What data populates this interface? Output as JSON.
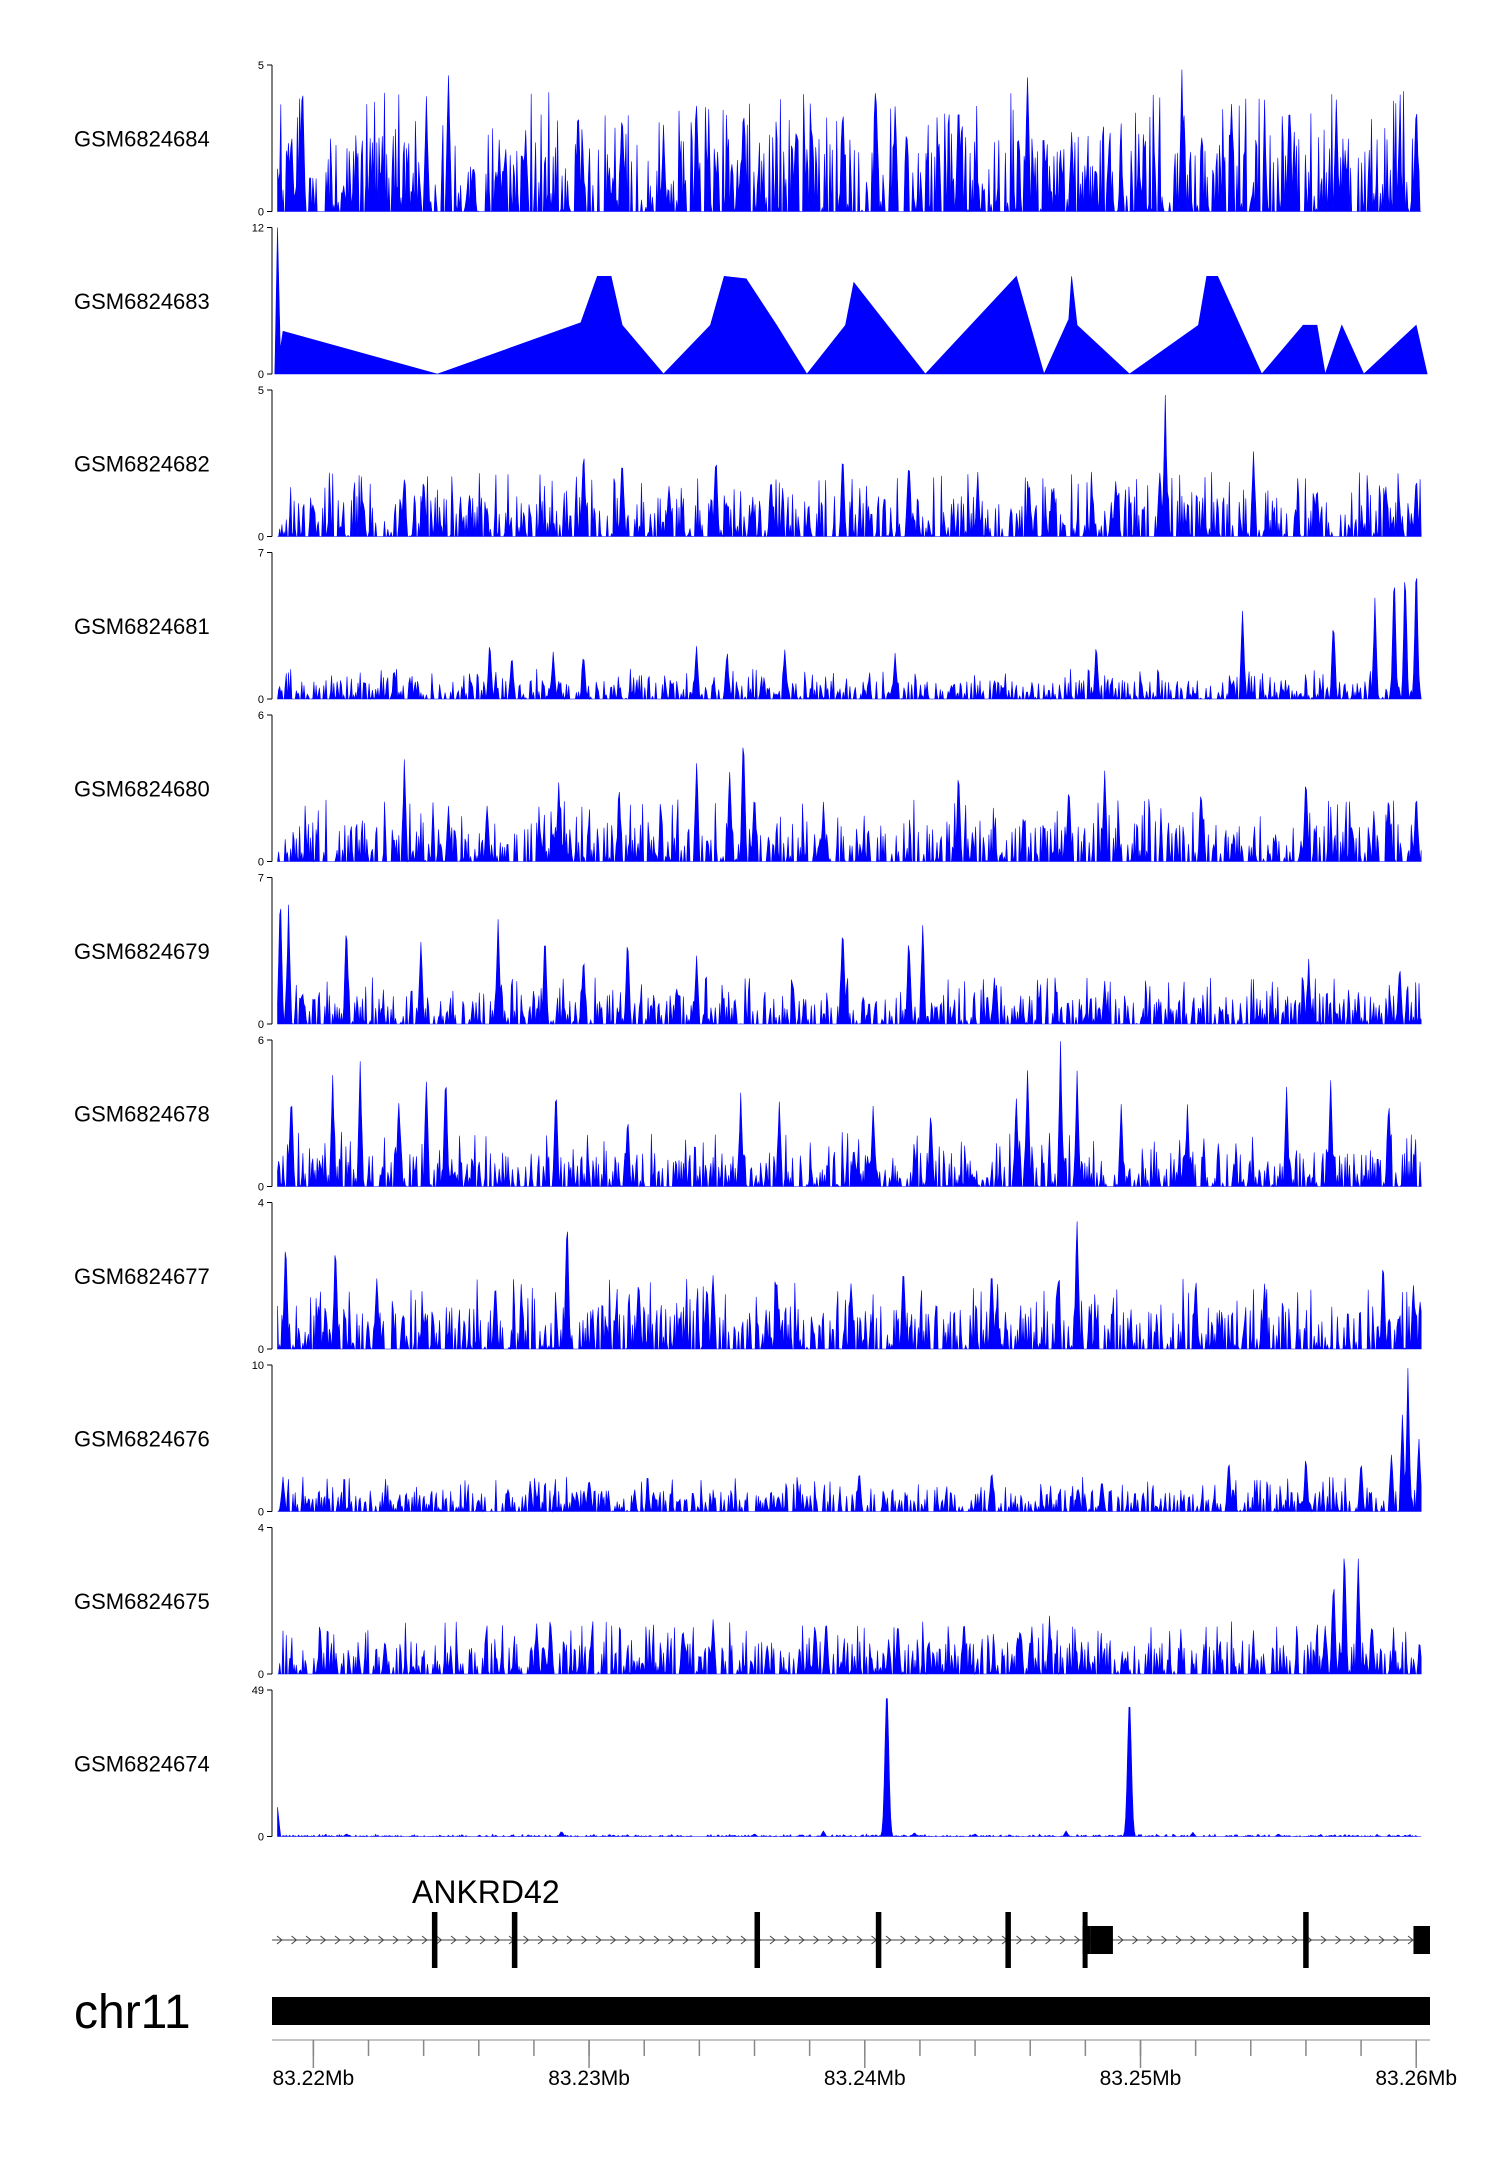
{
  "chart_data": {
    "type": "area",
    "title": "",
    "series_color": "#0000ff",
    "chromosome": "chr11",
    "genome_axis": {
      "min": 83.2185,
      "max": 83.2605,
      "unit": "Mb",
      "ticks": [
        {
          "value": 83.22,
          "label": "83.22Mb"
        },
        {
          "value": 83.23,
          "label": "83.23Mb"
        },
        {
          "value": 83.24,
          "label": "83.24Mb"
        },
        {
          "value": 83.25,
          "label": "83.25Mb"
        },
        {
          "value": 83.26,
          "label": "83.26Mb"
        }
      ],
      "minor_step": 0.002
    },
    "gene": {
      "name": "ANKRD42",
      "start": 83.2185,
      "end": 83.2605,
      "strand": "+",
      "exons": [
        {
          "start": 83.2243,
          "end": 83.2245
        },
        {
          "start": 83.2272,
          "end": 83.2274
        },
        {
          "start": 83.236,
          "end": 83.2362
        },
        {
          "start": 83.2404,
          "end": 83.2406
        },
        {
          "start": 83.2451,
          "end": 83.2453
        },
        {
          "start": 83.2479,
          "end": 83.2482
        },
        {
          "start": 83.2482,
          "end": 83.249
        },
        {
          "start": 83.2559,
          "end": 83.2561
        },
        {
          "start": 83.2599,
          "end": 83.2605
        }
      ]
    },
    "tracks": [
      {
        "name": "GSM6824684",
        "ymax": 5,
        "ytick_max": "5",
        "ytick_min": "0",
        "peaks": [
          [
            83.2192,
            3
          ],
          [
            83.2196,
            5
          ],
          [
            83.2211,
            1
          ],
          [
            83.2225,
            2
          ],
          [
            83.2241,
            4
          ],
          [
            83.2249,
            5
          ],
          [
            83.2258,
            2
          ],
          [
            83.2277,
            3
          ],
          [
            83.2296,
            4
          ],
          [
            83.2312,
            4
          ],
          [
            83.2327,
            3
          ],
          [
            83.2339,
            4
          ],
          [
            83.2356,
            4
          ],
          [
            83.2375,
            3
          ],
          [
            83.2392,
            4
          ],
          [
            83.2404,
            5
          ],
          [
            83.2411,
            4
          ],
          [
            83.2434,
            4
          ],
          [
            83.2459,
            5
          ],
          [
            83.2475,
            3
          ],
          [
            83.2493,
            2
          ],
          [
            83.2515,
            5
          ],
          [
            83.2533,
            4
          ],
          [
            83.2554,
            4
          ],
          [
            83.2571,
            4
          ],
          [
            83.2594,
            3
          ],
          [
            83.26,
            4
          ]
        ],
        "noise": 2.6
      },
      {
        "name": "GSM6824683",
        "ymax": 12,
        "ytick_max": "12",
        "ytick_min": "0",
        "points": [
          [
            83.2186,
            0
          ],
          [
            83.2187,
            12
          ],
          [
            83.2188,
            2
          ],
          [
            83.2189,
            3.5
          ],
          [
            83.2245,
            0
          ],
          [
            83.2297,
            4.2
          ],
          [
            83.2303,
            8
          ],
          [
            83.2308,
            8
          ],
          [
            83.2312,
            4
          ],
          [
            83.2327,
            0
          ],
          [
            83.2344,
            4
          ],
          [
            83.2349,
            8
          ],
          [
            83.2357,
            7.8
          ],
          [
            83.2368,
            4
          ],
          [
            83.2379,
            0
          ],
          [
            83.2393,
            4
          ],
          [
            83.2396,
            7.5
          ],
          [
            83.2422,
            0
          ],
          [
            83.2455,
            8
          ],
          [
            83.2465,
            0
          ],
          [
            83.2474,
            4.5
          ],
          [
            83.2475,
            8
          ],
          [
            83.2477,
            4
          ],
          [
            83.2496,
            0
          ],
          [
            83.2521,
            4
          ],
          [
            83.2524,
            8
          ],
          [
            83.2528,
            8
          ],
          [
            83.2536,
            4
          ],
          [
            83.2544,
            0
          ],
          [
            83.2559,
            4
          ],
          [
            83.2564,
            4
          ],
          [
            83.2567,
            0
          ],
          [
            83.2573,
            4
          ],
          [
            83.2581,
            0
          ],
          [
            83.26,
            4
          ],
          [
            83.2604,
            0
          ]
        ]
      },
      {
        "name": "GSM6824682",
        "ymax": 5,
        "ytick_max": "5",
        "ytick_min": "0",
        "peaks": [
          [
            83.2218,
            1.5
          ],
          [
            83.2233,
            2.2
          ],
          [
            83.224,
            2.3
          ],
          [
            83.2298,
            3.3
          ],
          [
            83.2312,
            3.2
          ],
          [
            83.2329,
            2
          ],
          [
            83.2346,
            3
          ],
          [
            83.2366,
            2.2
          ],
          [
            83.2392,
            3.2
          ],
          [
            83.2416,
            3
          ],
          [
            83.2441,
            2.2
          ],
          [
            83.2468,
            2
          ],
          [
            83.2491,
            2.2
          ],
          [
            83.2507,
            2.5
          ],
          [
            83.2509,
            4.9
          ],
          [
            83.2541,
            3.2
          ],
          [
            83.2564,
            2
          ],
          [
            83.2589,
            2
          ],
          [
            83.26,
            2.2
          ]
        ],
        "noise": 1.4
      },
      {
        "name": "GSM6824681",
        "ymax": 7,
        "ytick_max": "7",
        "ytick_min": "0",
        "peaks": [
          [
            83.2264,
            3
          ],
          [
            83.2272,
            2.3
          ],
          [
            83.2287,
            2.5
          ],
          [
            83.2298,
            2.4
          ],
          [
            83.2339,
            2.8
          ],
          [
            83.235,
            2.6
          ],
          [
            83.2371,
            2.6
          ],
          [
            83.2411,
            2.4
          ],
          [
            83.2484,
            2.9
          ],
          [
            83.2537,
            4.5
          ],
          [
            83.257,
            4.1
          ],
          [
            83.2585,
            5
          ],
          [
            83.2592,
            6.5
          ],
          [
            83.2596,
            6.8
          ],
          [
            83.26,
            7
          ],
          [
            83.2604,
            6.2
          ]
        ],
        "noise": 0.9
      },
      {
        "name": "GSM6824680",
        "ymax": 6,
        "ytick_max": "6",
        "ytick_min": "0",
        "peaks": [
          [
            83.2233,
            4.2
          ],
          [
            83.2249,
            2.3
          ],
          [
            83.2263,
            2.5
          ],
          [
            83.2289,
            3.5
          ],
          [
            83.2311,
            3
          ],
          [
            83.2339,
            4.5
          ],
          [
            83.2351,
            4
          ],
          [
            83.2356,
            6
          ],
          [
            83.236,
            3
          ],
          [
            83.2385,
            2.5
          ],
          [
            83.2434,
            4
          ],
          [
            83.2474,
            3.5
          ],
          [
            83.2487,
            4
          ],
          [
            83.2522,
            3.5
          ],
          [
            83.256,
            4
          ],
          [
            83.259,
            3
          ],
          [
            83.26,
            3
          ]
        ],
        "noise": 1.6
      },
      {
        "name": "GSM6824679",
        "ymax": 7,
        "ytick_max": "7",
        "ytick_min": "0",
        "peaks": [
          [
            83.2188,
            6.8
          ],
          [
            83.2191,
            5.8
          ],
          [
            83.2212,
            5.5
          ],
          [
            83.2239,
            4.2
          ],
          [
            83.2267,
            5.5
          ],
          [
            83.2284,
            4.8
          ],
          [
            83.2298,
            3.6
          ],
          [
            83.2314,
            4.5
          ],
          [
            83.2339,
            3.6
          ],
          [
            83.2392,
            5.6
          ],
          [
            83.2416,
            4.6
          ],
          [
            83.2421,
            5.2
          ],
          [
            83.2447,
            2.4
          ],
          [
            83.2487,
            2.2
          ],
          [
            83.2561,
            3.2
          ],
          [
            83.2594,
            3.3
          ]
        ],
        "noise": 1.4
      },
      {
        "name": "GSM6824678",
        "ymax": 6,
        "ytick_max": "6",
        "ytick_min": "0",
        "peaks": [
          [
            83.2192,
            4.5
          ],
          [
            83.2207,
            4.6
          ],
          [
            83.2217,
            5.5
          ],
          [
            83.2231,
            4
          ],
          [
            83.2241,
            5
          ],
          [
            83.2248,
            5
          ],
          [
            83.2288,
            4.5
          ],
          [
            83.2314,
            3.2
          ],
          [
            83.2355,
            4
          ],
          [
            83.2369,
            3.8
          ],
          [
            83.2403,
            3.5
          ],
          [
            83.2424,
            3.5
          ],
          [
            83.2455,
            4
          ],
          [
            83.2459,
            5.2
          ],
          [
            83.2471,
            6
          ],
          [
            83.2477,
            4.8
          ],
          [
            83.2493,
            3.4
          ],
          [
            83.2517,
            3.5
          ],
          [
            83.2553,
            4.2
          ],
          [
            83.2569,
            4.6
          ],
          [
            83.259,
            4
          ],
          [
            83.2604,
            3
          ]
        ],
        "noise": 1.4
      },
      {
        "name": "GSM6824677",
        "ymax": 4,
        "ytick_max": "4",
        "ytick_min": "0",
        "peaks": [
          [
            83.219,
            3.2
          ],
          [
            83.2208,
            3.1
          ],
          [
            83.2223,
            2.2
          ],
          [
            83.2266,
            2.1
          ],
          [
            83.2292,
            3.9
          ],
          [
            83.2318,
            2.2
          ],
          [
            83.2345,
            2.3
          ],
          [
            83.2368,
            2.2
          ],
          [
            83.2395,
            2.1
          ],
          [
            83.2414,
            2.6
          ],
          [
            83.2446,
            2.6
          ],
          [
            83.247,
            2.2
          ],
          [
            83.2477,
            3.9
          ],
          [
            83.252,
            2.2
          ],
          [
            83.2545,
            2.1
          ],
          [
            83.2588,
            2.6
          ],
          [
            83.2599,
            2
          ]
        ],
        "noise": 1.2
      },
      {
        "name": "GSM6824676",
        "ymax": 10,
        "ytick_max": "10",
        "ytick_min": "0",
        "peaks": [
          [
            83.2189,
            2.5
          ],
          [
            83.23,
            2.7
          ],
          [
            83.2398,
            3
          ],
          [
            83.2446,
            3.3
          ],
          [
            83.2486,
            2.5
          ],
          [
            83.2532,
            4
          ],
          [
            83.256,
            4.2
          ],
          [
            83.258,
            3.8
          ],
          [
            83.2591,
            4.5
          ],
          [
            83.2595,
            7.5
          ],
          [
            83.2597,
            10
          ],
          [
            83.2601,
            5.5
          ],
          [
            83.2604,
            3.2
          ]
        ],
        "noise": 1.5
      },
      {
        "name": "GSM6824675",
        "ymax": 4,
        "ytick_max": "4",
        "ytick_min": "0",
        "peaks": [
          [
            83.2226,
            1.1
          ],
          [
            83.2281,
            1.6
          ],
          [
            83.2286,
            1.8
          ],
          [
            83.2334,
            1.5
          ],
          [
            83.2345,
            1.6
          ],
          [
            83.2382,
            1.6
          ],
          [
            83.2386,
            1.7
          ],
          [
            83.2412,
            1.6
          ],
          [
            83.2436,
            1.6
          ],
          [
            83.2467,
            1.6
          ],
          [
            83.2567,
            1.5
          ],
          [
            83.257,
            3
          ],
          [
            83.2574,
            3.9
          ],
          [
            83.2579,
            3.3
          ],
          [
            83.2584,
            1.5
          ]
        ],
        "noise": 0.9
      },
      {
        "name": "GSM6824674",
        "ymax": 49,
        "ytick_max": "49",
        "ytick_min": "0",
        "peaks": [
          [
            83.2187,
            10
          ],
          [
            83.2212,
            1
          ],
          [
            83.229,
            2
          ],
          [
            83.236,
            1
          ],
          [
            83.2385,
            2
          ],
          [
            83.2418,
            1.5
          ],
          [
            83.244,
            1
          ],
          [
            83.2473,
            2
          ],
          [
            83.2519,
            1.5
          ],
          [
            83.255,
            1
          ]
        ],
        "big_peaks": [
          [
            83.2408,
            48,
            0.00022
          ],
          [
            83.2496,
            45,
            0.00022
          ]
        ],
        "noise": 0.5
      }
    ]
  }
}
